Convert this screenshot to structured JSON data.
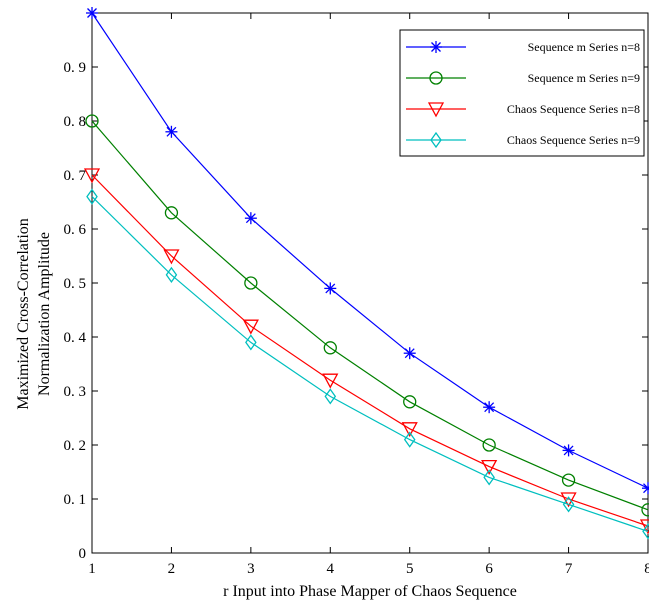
{
  "chart_data": {
    "type": "line",
    "title": "",
    "xlabel": "r Input into Phase Mapper of Chaos Sequence",
    "ylabel_lines": [
      "Maximized Cross-Correlation",
      "Normalization Amplitude"
    ],
    "xlim": [
      1,
      8
    ],
    "ylim": [
      0,
      1
    ],
    "x_ticks": [
      1,
      2,
      3,
      4,
      5,
      6,
      7,
      8
    ],
    "x_tick_labels": [
      "1",
      "2",
      "3",
      "4",
      "5",
      "6",
      "7",
      "8"
    ],
    "y_ticks": [
      0,
      0.1,
      0.2,
      0.3,
      0.4,
      0.5,
      0.6,
      0.7,
      0.8,
      0.9
    ],
    "y_tick_labels": [
      "0",
      "0. 1",
      "0. 2",
      "0. 3",
      "0. 4",
      "0. 5",
      "0. 6",
      "0. 7",
      "0. 8",
      "0. 9"
    ],
    "grid": false,
    "legend_position": "top-right",
    "x": [
      1,
      2,
      3,
      4,
      5,
      6,
      7,
      8
    ],
    "series": [
      {
        "name": "Sequence m Series n=8",
        "color": "#0000ff",
        "marker": "asterisk",
        "values": [
          1.0,
          0.78,
          0.62,
          0.49,
          0.37,
          0.27,
          0.19,
          0.12
        ]
      },
      {
        "name": "Sequence m Series n=9",
        "color": "#008000",
        "marker": "circle",
        "values": [
          0.8,
          0.63,
          0.5,
          0.38,
          0.28,
          0.2,
          0.135,
          0.08
        ]
      },
      {
        "name": "Chaos Sequence Series n=8",
        "color": "#ff0000",
        "marker": "triangle-down",
        "values": [
          0.7,
          0.55,
          0.42,
          0.32,
          0.23,
          0.16,
          0.1,
          0.05
        ]
      },
      {
        "name": "Chaos Sequence Series n=9",
        "color": "#00bfbf",
        "marker": "diamond",
        "values": [
          0.66,
          0.515,
          0.39,
          0.29,
          0.21,
          0.14,
          0.09,
          0.04
        ]
      }
    ]
  }
}
